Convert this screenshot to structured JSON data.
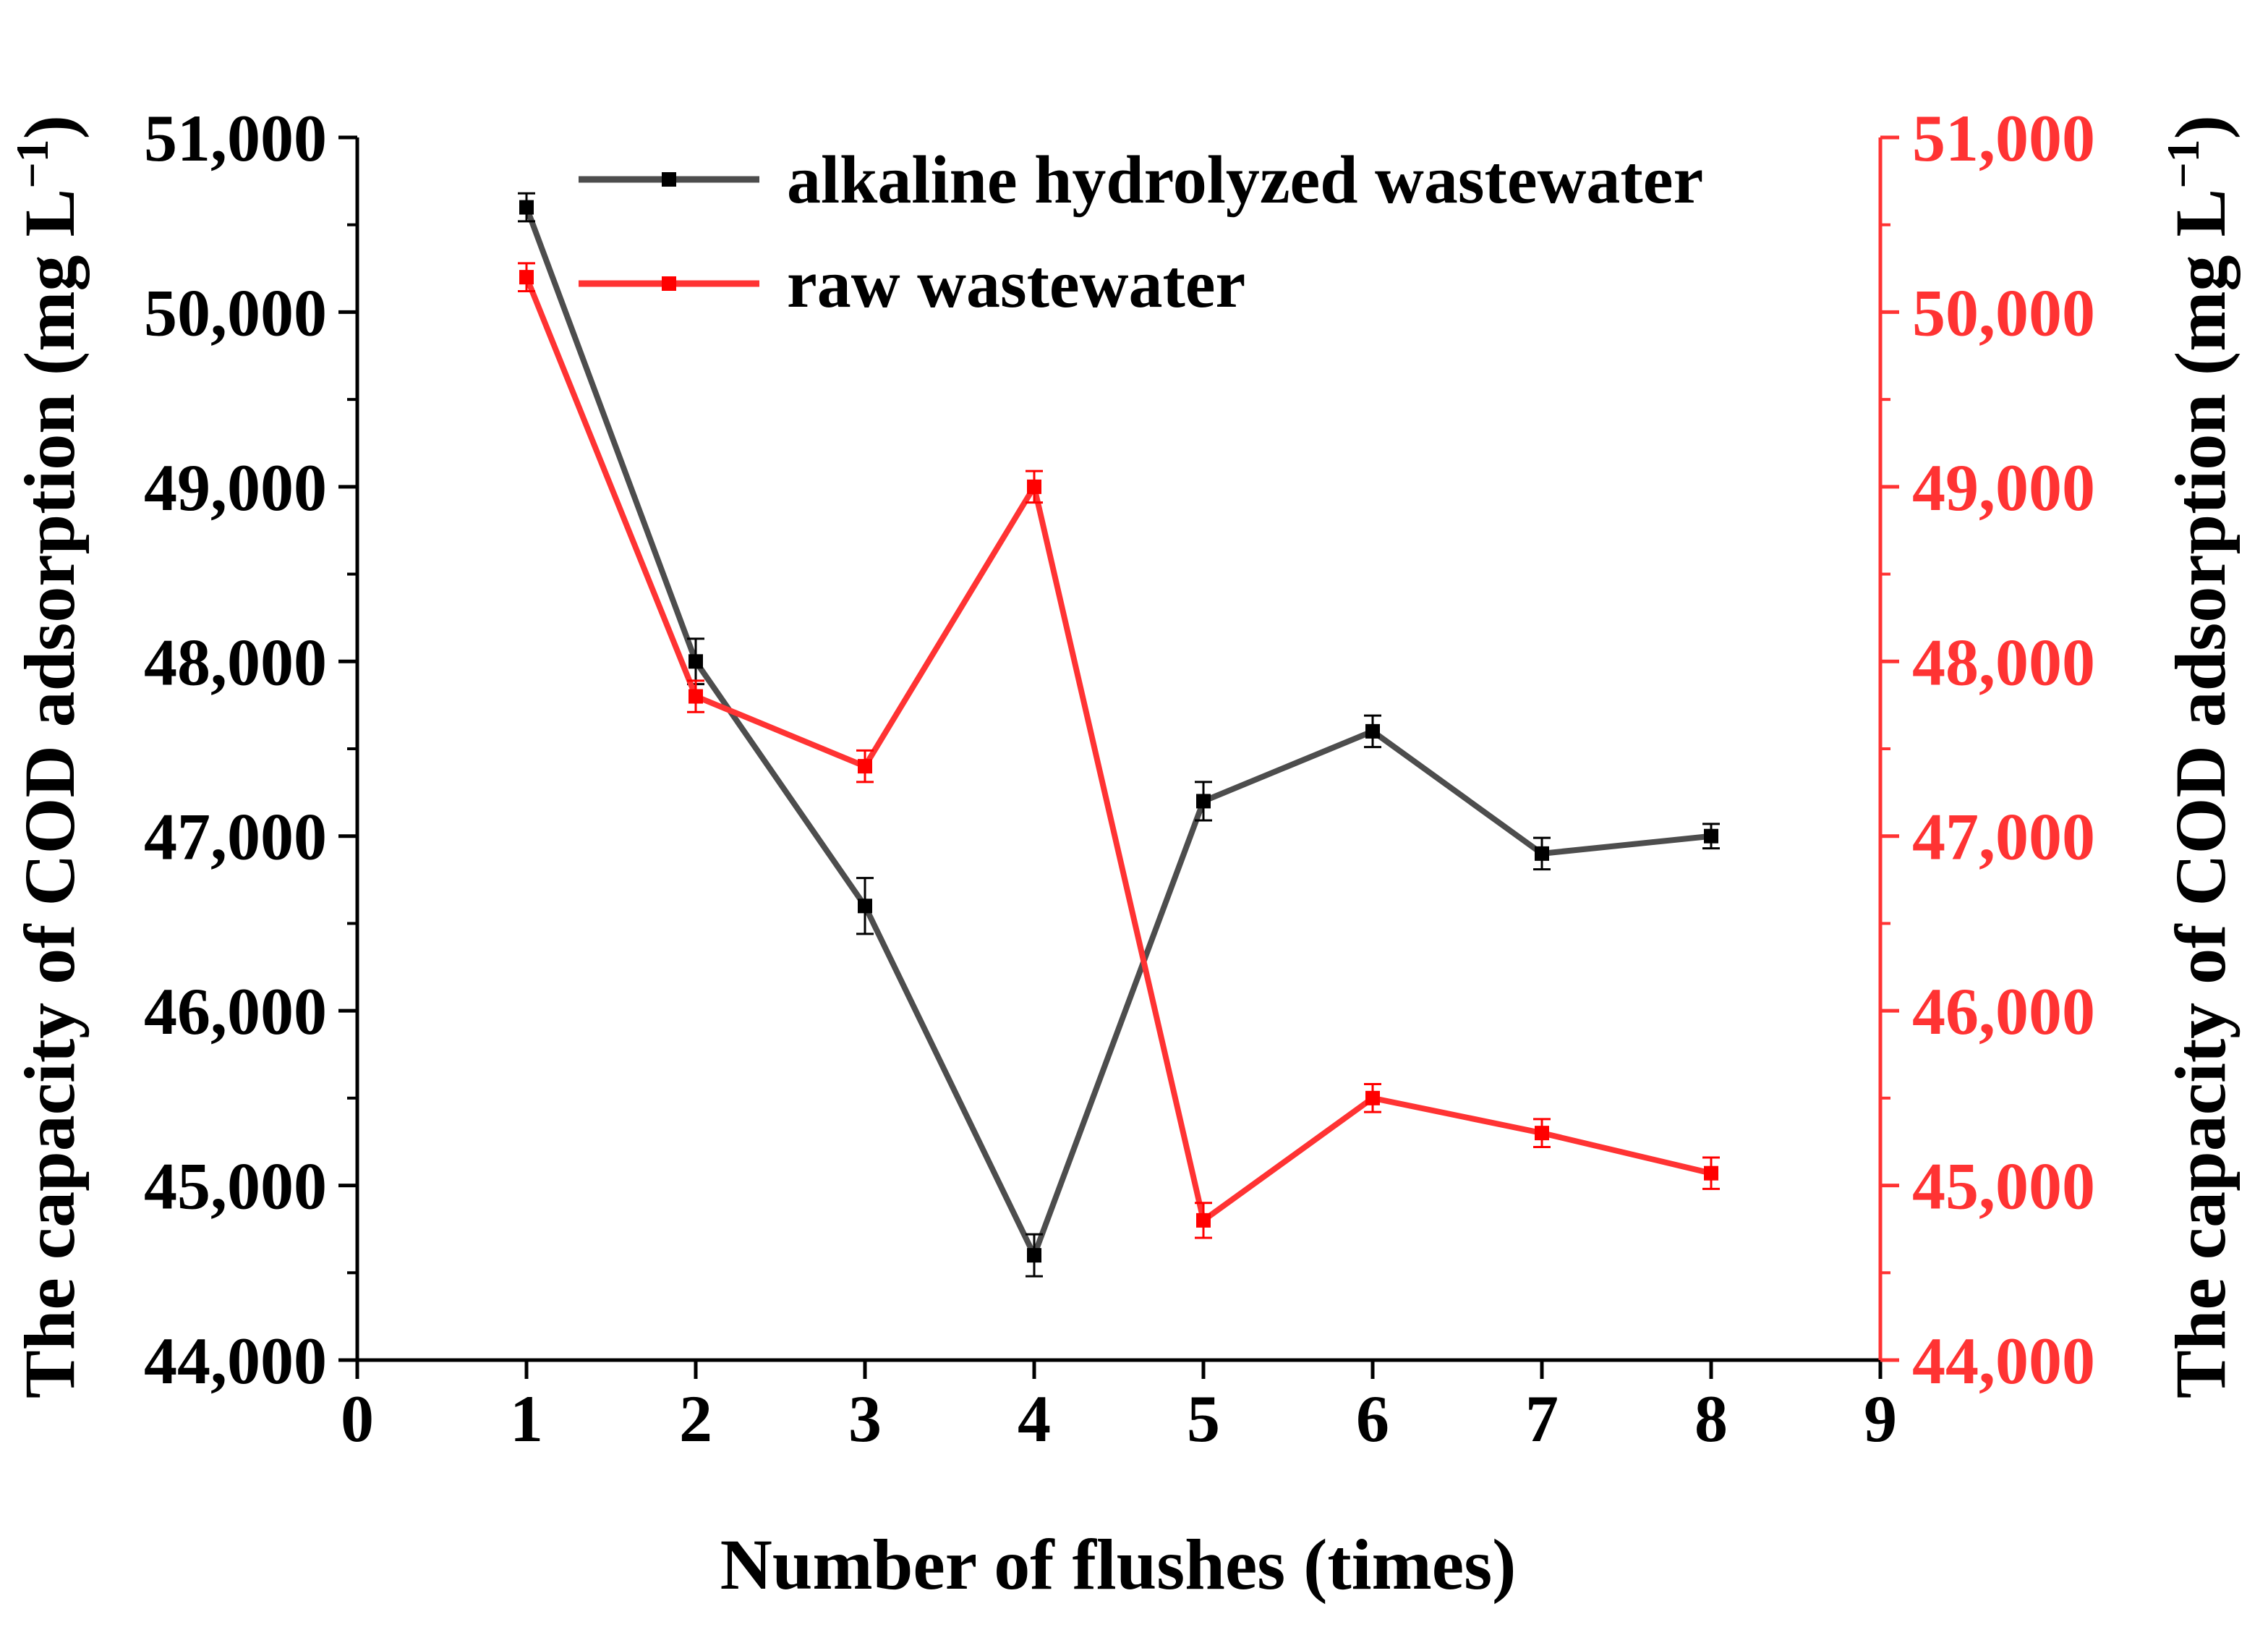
{
  "chart_data": {
    "type": "line",
    "title": "",
    "xlabel": "Number of flushes (times)",
    "ylabel_left": "The capacity of COD adsorption (mg L",
    "ylabel_right": "The capacity of COD adsorption (mg L",
    "ylabel_unit_sup": "−1",
    "ylabel_close": ")",
    "xlim": [
      0,
      9
    ],
    "ylim_left": [
      44000,
      51000
    ],
    "ylim_right": [
      44000,
      51000
    ],
    "x_ticks": [
      "0",
      "1",
      "2",
      "3",
      "4",
      "5",
      "6",
      "7",
      "8",
      "9"
    ],
    "y_ticks_left": [
      "44,000",
      "45,000",
      "46,000",
      "47,000",
      "48,000",
      "49,000",
      "50,000",
      "51,000"
    ],
    "y_ticks_right": [
      "44,000",
      "45,000",
      "46,000",
      "47,000",
      "48,000",
      "49,000",
      "50,000",
      "51,000"
    ],
    "legend_position": "top-center",
    "grid": false,
    "series": [
      {
        "name": "alkaline hydrolyzed wastewater",
        "axis": "left",
        "color": "#4d4d4d",
        "marker_color": "#000000",
        "x": [
          1,
          2,
          3,
          4,
          5,
          6,
          7,
          8
        ],
        "values": [
          50600,
          48000,
          46600,
          44600,
          47200,
          47600,
          46900,
          47000
        ],
        "errors": [
          80,
          130,
          160,
          120,
          110,
          90,
          90,
          70
        ]
      },
      {
        "name": "raw wastewater",
        "axis": "right",
        "color": "#ff3333",
        "marker_color": "#ff0000",
        "x": [
          1,
          2,
          3,
          4,
          5,
          6,
          7,
          8
        ],
        "values": [
          50200,
          47800,
          47400,
          49000,
          44800,
          45500,
          45300,
          45070
        ],
        "errors": [
          80,
          90,
          90,
          90,
          100,
          80,
          80,
          90
        ]
      }
    ]
  }
}
